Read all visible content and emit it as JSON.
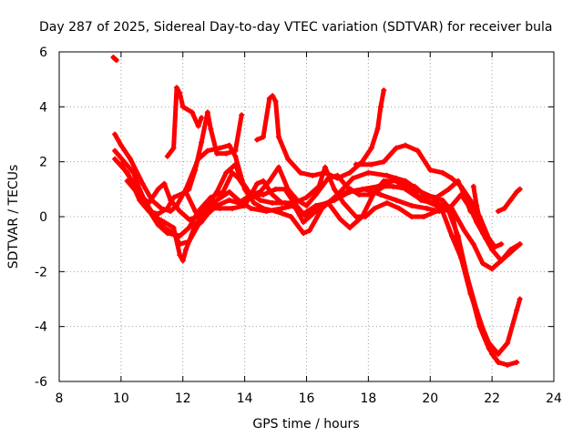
{
  "chart_data": {
    "type": "scatter",
    "title": "Day 287 of 2025, Sidereal Day-to-day VTEC variation (SDTVAR) for receiver bula",
    "xlabel": "GPS time / hours",
    "ylabel": "SDTVAR / TECUs",
    "xlim": [
      8,
      24
    ],
    "ylim": [
      -6,
      6
    ],
    "xticks": [
      "8",
      "10",
      "12",
      "14",
      "16",
      "18",
      "20",
      "22",
      "24"
    ],
    "yticks": [
      "-6",
      "-4",
      "-2",
      "0",
      "2",
      "4",
      "6"
    ],
    "grid": true,
    "marker": "+",
    "color": "#ff0000",
    "series": [
      {
        "name": "s1",
        "points": [
          [
            9.75,
            5.8
          ],
          [
            9.85,
            5.7
          ]
        ]
      },
      {
        "name": "s2",
        "points": [
          [
            9.8,
            3.0
          ],
          [
            10.0,
            2.6
          ],
          [
            10.3,
            2.1
          ],
          [
            10.7,
            1.2
          ],
          [
            11.0,
            0.6
          ],
          [
            11.3,
            0.3
          ],
          [
            11.6,
            0.2
          ],
          [
            11.8,
            0.4
          ],
          [
            12.1,
            1.0
          ],
          [
            12.5,
            2.1
          ],
          [
            12.8,
            2.4
          ],
          [
            13.2,
            2.5
          ],
          [
            13.5,
            2.6
          ],
          [
            13.7,
            2.2
          ],
          [
            14.0,
            1.0
          ],
          [
            14.3,
            0.5
          ],
          [
            14.6,
            0.3
          ],
          [
            15.0,
            0.2
          ],
          [
            15.5,
            0.0
          ],
          [
            15.9,
            -0.6
          ],
          [
            16.1,
            -0.5
          ],
          [
            16.5,
            0.3
          ],
          [
            17.0,
            0.8
          ],
          [
            17.5,
            1.4
          ],
          [
            18.0,
            1.6
          ],
          [
            18.6,
            1.5
          ],
          [
            19.2,
            1.3
          ],
          [
            19.7,
            0.9
          ],
          [
            20.1,
            0.7
          ],
          [
            20.4,
            0.2
          ],
          [
            20.7,
            -0.7
          ],
          [
            21.0,
            -1.5
          ],
          [
            21.3,
            -2.8
          ],
          [
            21.6,
            -3.8
          ],
          [
            21.9,
            -4.6
          ],
          [
            22.2,
            -5.0
          ],
          [
            22.5,
            -4.6
          ],
          [
            22.8,
            -3.4
          ],
          [
            22.9,
            -3.0
          ]
        ]
      },
      {
        "name": "s3",
        "points": [
          [
            9.8,
            2.4
          ],
          [
            10.1,
            2.0
          ],
          [
            10.4,
            1.6
          ],
          [
            10.6,
            1.0
          ],
          [
            10.8,
            0.5
          ],
          [
            11.1,
            0.0
          ],
          [
            11.4,
            -0.2
          ],
          [
            11.7,
            -0.4
          ],
          [
            11.9,
            -1.4
          ],
          [
            12.0,
            -1.6
          ],
          [
            12.1,
            -1.2
          ],
          [
            12.4,
            -0.3
          ],
          [
            12.7,
            0.1
          ],
          [
            13.1,
            0.6
          ],
          [
            13.5,
            0.9
          ],
          [
            13.8,
            0.6
          ],
          [
            14.2,
            0.3
          ],
          [
            14.7,
            0.2
          ],
          [
            15.2,
            0.3
          ],
          [
            15.6,
            0.4
          ],
          [
            15.9,
            -0.2
          ],
          [
            16.3,
            0.2
          ],
          [
            16.8,
            0.6
          ],
          [
            17.3,
            0.9
          ],
          [
            17.8,
            1.0
          ],
          [
            18.3,
            1.1
          ],
          [
            18.8,
            1.1
          ],
          [
            19.3,
            1.0
          ],
          [
            19.8,
            0.6
          ],
          [
            20.2,
            0.4
          ],
          [
            20.6,
            0.2
          ],
          [
            20.9,
            -0.7
          ],
          [
            21.2,
            -2.2
          ],
          [
            21.5,
            -3.4
          ],
          [
            21.8,
            -4.4
          ],
          [
            22.0,
            -5.0
          ],
          [
            22.2,
            -5.3
          ],
          [
            22.5,
            -5.4
          ],
          [
            22.8,
            -5.3
          ]
        ]
      },
      {
        "name": "s4",
        "points": [
          [
            9.8,
            2.1
          ],
          [
            10.2,
            1.6
          ],
          [
            10.5,
            1.0
          ],
          [
            10.8,
            0.4
          ],
          [
            11.2,
            -0.3
          ],
          [
            11.5,
            -0.6
          ],
          [
            11.9,
            -0.7
          ],
          [
            12.2,
            -0.4
          ],
          [
            12.5,
            0.2
          ],
          [
            12.9,
            0.7
          ],
          [
            13.3,
            0.9
          ],
          [
            13.6,
            1.6
          ],
          [
            13.8,
            1.4
          ],
          [
            14.1,
            0.9
          ],
          [
            14.5,
            0.6
          ],
          [
            14.9,
            0.5
          ],
          [
            15.3,
            0.5
          ],
          [
            15.7,
            0.3
          ],
          [
            16.0,
            0.0
          ],
          [
            16.4,
            0.4
          ],
          [
            16.9,
            0.6
          ],
          [
            17.4,
            0.9
          ],
          [
            17.9,
            1.0
          ],
          [
            18.4,
            0.8
          ],
          [
            18.9,
            0.6
          ],
          [
            19.4,
            0.4
          ],
          [
            19.9,
            0.3
          ],
          [
            20.3,
            0.2
          ],
          [
            20.7,
            0.4
          ],
          [
            21.0,
            0.8
          ],
          [
            21.3,
            0.3
          ],
          [
            21.5,
            -0.2
          ],
          [
            21.8,
            -0.8
          ],
          [
            22.0,
            -1.2
          ],
          [
            22.3,
            -1.6
          ],
          [
            22.6,
            -1.3
          ],
          [
            22.9,
            -1.0
          ]
        ]
      },
      {
        "name": "s5",
        "points": [
          [
            10.0,
            1.9
          ],
          [
            10.3,
            1.4
          ],
          [
            10.6,
            0.8
          ],
          [
            10.9,
            0.5
          ],
          [
            11.2,
            1.0
          ],
          [
            11.4,
            1.2
          ],
          [
            11.6,
            0.6
          ],
          [
            11.9,
            0.2
          ],
          [
            12.2,
            -0.1
          ],
          [
            12.5,
            0.0
          ],
          [
            12.8,
            0.3
          ],
          [
            13.2,
            0.3
          ],
          [
            13.6,
            0.3
          ],
          [
            14.0,
            0.4
          ],
          [
            14.4,
            1.2
          ],
          [
            14.6,
            1.3
          ],
          [
            14.9,
            0.8
          ],
          [
            15.2,
            0.5
          ],
          [
            15.6,
            0.5
          ],
          [
            16.0,
            0.7
          ],
          [
            16.4,
            1.1
          ],
          [
            16.6,
            1.8
          ],
          [
            16.9,
            1.0
          ],
          [
            17.2,
            0.5
          ],
          [
            17.6,
            0.0
          ],
          [
            17.9,
            0.0
          ],
          [
            18.2,
            0.3
          ],
          [
            18.6,
            0.5
          ],
          [
            19.0,
            0.3
          ],
          [
            19.4,
            0.0
          ],
          [
            19.8,
            0.0
          ],
          [
            20.2,
            0.2
          ],
          [
            20.7,
            0.3
          ],
          [
            21.1,
            -0.5
          ],
          [
            21.4,
            -1.0
          ],
          [
            21.7,
            -1.7
          ],
          [
            22.0,
            -1.9
          ],
          [
            22.3,
            -1.6
          ],
          [
            22.6,
            -1.2
          ],
          [
            22.9,
            -1.0
          ]
        ]
      },
      {
        "name": "s6",
        "points": [
          [
            10.4,
            1.1
          ],
          [
            10.6,
            0.6
          ],
          [
            10.9,
            0.2
          ],
          [
            11.2,
            0.1
          ],
          [
            11.5,
            0.3
          ],
          [
            11.7,
            0.7
          ],
          [
            12.1,
            0.9
          ],
          [
            12.4,
            0.2
          ],
          [
            12.6,
            -0.2
          ],
          [
            12.8,
            0.1
          ],
          [
            13.1,
            0.4
          ],
          [
            13.5,
            0.6
          ],
          [
            13.8,
            0.5
          ],
          [
            14.2,
            0.8
          ],
          [
            14.6,
            0.8
          ],
          [
            15.0,
            1.0
          ],
          [
            15.3,
            1.0
          ],
          [
            15.6,
            0.5
          ],
          [
            15.9,
            0.1
          ],
          [
            16.3,
            0.4
          ],
          [
            16.7,
            0.5
          ],
          [
            17.1,
            -0.1
          ],
          [
            17.4,
            -0.4
          ],
          [
            17.8,
            0.0
          ],
          [
            18.2,
            0.9
          ],
          [
            18.5,
            1.3
          ],
          [
            18.9,
            1.3
          ],
          [
            19.2,
            1.0
          ],
          [
            19.6,
            0.7
          ],
          [
            20.0,
            0.7
          ],
          [
            20.4,
            0.6
          ],
          [
            20.7,
            0.2
          ],
          [
            21.0,
            -1.5
          ],
          [
            21.3,
            -2.7
          ],
          [
            21.6,
            -4.0
          ],
          [
            21.9,
            -4.8
          ],
          [
            22.2,
            -5.3
          ]
        ]
      },
      {
        "name": "s7",
        "points": [
          [
            10.2,
            1.3
          ],
          [
            10.5,
            0.9
          ],
          [
            10.8,
            0.5
          ],
          [
            11.1,
            0.0
          ],
          [
            11.4,
            -0.4
          ],
          [
            11.7,
            -0.6
          ],
          [
            11.9,
            -1.0
          ],
          [
            12.2,
            -0.9
          ],
          [
            12.5,
            -0.3
          ],
          [
            12.8,
            0.4
          ],
          [
            13.1,
            0.9
          ],
          [
            13.4,
            1.6
          ],
          [
            13.7,
            1.9
          ],
          [
            13.9,
            1.3
          ],
          [
            14.2,
            0.8
          ],
          [
            14.5,
            0.9
          ],
          [
            14.8,
            1.3
          ],
          [
            15.1,
            1.8
          ],
          [
            15.4,
            1.0
          ],
          [
            15.7,
            0.6
          ],
          [
            16.0,
            0.4
          ],
          [
            16.3,
            0.8
          ],
          [
            16.7,
            1.4
          ],
          [
            17.0,
            1.5
          ],
          [
            17.3,
            1.1
          ],
          [
            17.7,
            0.8
          ],
          [
            18.1,
            0.8
          ],
          [
            18.5,
            1.1
          ],
          [
            18.9,
            1.4
          ],
          [
            19.3,
            1.2
          ],
          [
            19.7,
            0.6
          ],
          [
            20.1,
            0.5
          ],
          [
            20.5,
            0.4
          ]
        ]
      },
      {
        "name": "s8",
        "points": [
          [
            11.5,
            2.2
          ],
          [
            11.7,
            2.5
          ],
          [
            11.8,
            4.7
          ],
          [
            11.9,
            4.5
          ],
          [
            12.0,
            4.0
          ],
          [
            12.3,
            3.8
          ],
          [
            12.5,
            3.3
          ],
          [
            12.6,
            3.6
          ]
        ]
      },
      {
        "name": "s9",
        "points": [
          [
            12.2,
            1.0
          ],
          [
            12.4,
            1.7
          ],
          [
            12.6,
            2.7
          ],
          [
            12.8,
            3.8
          ],
          [
            12.9,
            3.2
          ],
          [
            13.1,
            2.3
          ],
          [
            13.4,
            2.3
          ],
          [
            13.7,
            2.4
          ],
          [
            13.9,
            3.7
          ]
        ]
      },
      {
        "name": "s10",
        "points": [
          [
            14.4,
            2.8
          ],
          [
            14.6,
            2.9
          ],
          [
            14.8,
            4.3
          ],
          [
            14.9,
            4.4
          ],
          [
            15.0,
            4.2
          ],
          [
            15.1,
            2.9
          ],
          [
            15.4,
            2.1
          ],
          [
            15.8,
            1.6
          ],
          [
            16.2,
            1.5
          ],
          [
            16.6,
            1.6
          ],
          [
            17.0,
            1.4
          ],
          [
            17.4,
            1.6
          ],
          [
            17.8,
            2.0
          ],
          [
            18.1,
            2.5
          ],
          [
            18.3,
            3.2
          ],
          [
            18.4,
            4.0
          ],
          [
            18.5,
            4.6
          ]
        ]
      },
      {
        "name": "s11",
        "points": [
          [
            17.6,
            1.9
          ],
          [
            18.1,
            1.9
          ],
          [
            18.5,
            2.0
          ],
          [
            18.9,
            2.5
          ],
          [
            19.2,
            2.6
          ],
          [
            19.6,
            2.4
          ],
          [
            20.0,
            1.7
          ],
          [
            20.4,
            1.6
          ],
          [
            20.7,
            1.4
          ],
          [
            21.0,
            1.1
          ],
          [
            21.3,
            0.6
          ],
          [
            21.6,
            0.0
          ],
          [
            21.9,
            -0.8
          ],
          [
            22.1,
            -1.1
          ],
          [
            22.3,
            -1.0
          ]
        ]
      },
      {
        "name": "s12",
        "points": [
          [
            19.1,
            1.2
          ],
          [
            19.5,
            1.1
          ],
          [
            19.8,
            0.8
          ],
          [
            20.2,
            0.7
          ],
          [
            20.6,
            1.0
          ],
          [
            20.9,
            1.3
          ],
          [
            21.1,
            0.8
          ],
          [
            21.3,
            0.2
          ],
          [
            21.5,
            0.0
          ],
          [
            21.7,
            -0.5
          ]
        ]
      },
      {
        "name": "s13",
        "points": [
          [
            21.4,
            1.1
          ],
          [
            21.5,
            0.4
          ],
          [
            21.7,
            -0.6
          ]
        ]
      },
      {
        "name": "s14",
        "points": [
          [
            22.2,
            0.2
          ],
          [
            22.4,
            0.3
          ],
          [
            22.6,
            0.6
          ],
          [
            22.8,
            0.9
          ],
          [
            22.9,
            1.0
          ]
        ]
      }
    ]
  }
}
